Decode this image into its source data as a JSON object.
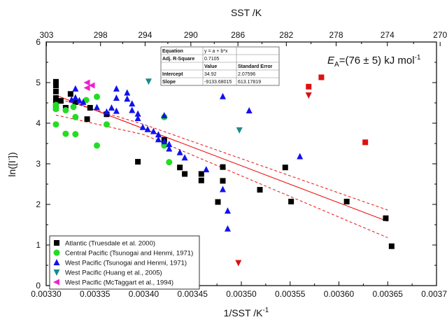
{
  "chart_data": {
    "type": "scatter",
    "xlabel": "1/SST /K",
    "xlabel_sup": "-1",
    "ylabel": "ln([I",
    "ylabel_sup": "-",
    "ylabel_end": "])",
    "top_xlabel": "SST /K",
    "xlim": [
      0.0033,
      0.0037
    ],
    "ylim": [
      0,
      6
    ],
    "x_ticks": [
      0.0033,
      0.00335,
      0.0034,
      0.00345,
      0.0035,
      0.00355,
      0.0036,
      0.00365,
      0.0037
    ],
    "x_tick_labels": [
      "0.00330",
      "0.00335",
      "0.00340",
      "0.00345",
      "0.00350",
      "0.00355",
      "0.00360",
      "0.00365",
      "0.00370"
    ],
    "y_ticks": [
      0,
      1,
      2,
      3,
      4,
      5,
      6
    ],
    "y_tick_labels": [
      "0",
      "1",
      "2",
      "3",
      "4",
      "5",
      "6"
    ],
    "top_ticks": [
      303,
      298,
      294,
      290,
      286,
      282,
      278,
      274,
      270
    ],
    "top_tick_labels": [
      "303",
      "298",
      "294",
      "290",
      "286",
      "282",
      "278",
      "274",
      "270"
    ],
    "annotation": {
      "prefix": "E",
      "subscript": "A",
      "text": "=(76 ± 5) kJ mol",
      "sup": "-1"
    },
    "fit_table": {
      "rows": [
        [
          "Equation",
          "y = a + b*x",
          ""
        ],
        [
          "Adj. R-Square",
          "0.7105",
          ""
        ],
        [
          "",
          "Value",
          "Standard Error"
        ],
        [
          "Intercept",
          "34.92",
          "2.07596"
        ],
        [
          "Slope",
          "-9133.68015",
          "613.17819"
        ]
      ]
    },
    "fit": {
      "intercept": 34.92,
      "slope": -9133.68015,
      "x_range": [
        0.00331,
        0.00365
      ]
    },
    "conf_band": {
      "upper": [
        [
          0.00331,
          4.62
        ],
        [
          0.0034,
          3.97
        ],
        [
          0.00365,
          1.86
        ]
      ],
      "lower": [
        [
          0.00331,
          4.2
        ],
        [
          0.0034,
          3.72
        ],
        [
          0.00365,
          1.18
        ]
      ]
    },
    "legend_position": "bottom-left",
    "series": [
      {
        "name": "Atlantic (Truesdale et al. 2000)",
        "marker": "square",
        "color": "#000000",
        "points": [
          [
            0.00331,
            5.02
          ],
          [
            0.00331,
            4.93
          ],
          [
            0.00331,
            4.78
          ],
          [
            0.00331,
            4.62
          ],
          [
            0.00331,
            4.45
          ],
          [
            0.00331,
            4.37
          ],
          [
            0.00331,
            4.52
          ],
          [
            0.003315,
            4.55
          ],
          [
            0.00332,
            4.38
          ],
          [
            0.003325,
            4.72
          ],
          [
            0.00333,
            4.52
          ],
          [
            0.003342,
            4.1
          ],
          [
            0.003345,
            4.38
          ],
          [
            0.003362,
            4.22
          ],
          [
            0.003394,
            3.05
          ],
          [
            0.003421,
            3.59
          ],
          [
            0.003437,
            2.91
          ],
          [
            0.003442,
            2.75
          ],
          [
            0.003459,
            2.75
          ],
          [
            0.003459,
            2.59
          ],
          [
            0.003476,
            2.06
          ],
          [
            0.003481,
            2.92
          ],
          [
            0.003481,
            2.58
          ],
          [
            0.003519,
            2.36
          ],
          [
            0.003545,
            2.91
          ],
          [
            0.003551,
            2.07
          ],
          [
            0.003608,
            2.07
          ],
          [
            0.003648,
            1.66
          ],
          [
            0.003654,
            0.97
          ]
        ]
      },
      {
        "name": "Central Pacific (Tsunogai and Henmi, 1971)",
        "marker": "circle",
        "color": "#22dd22",
        "points": [
          [
            0.00331,
            4.45
          ],
          [
            0.00331,
            4.35
          ],
          [
            0.00331,
            3.97
          ],
          [
            0.00332,
            4.32
          ],
          [
            0.00332,
            3.74
          ],
          [
            0.003328,
            4.4
          ],
          [
            0.00333,
            4.15
          ],
          [
            0.00333,
            3.73
          ],
          [
            0.003341,
            4.57
          ],
          [
            0.003352,
            4.65
          ],
          [
            0.003352,
            3.45
          ],
          [
            0.003362,
            3.97
          ],
          [
            0.003421,
            4.15
          ],
          [
            0.003421,
            3.45
          ],
          [
            0.003426,
            3.04
          ]
        ]
      },
      {
        "name": "West Pacific (Tsunogai and Henmi, 1971)",
        "marker": "triangle-up",
        "color": "#1111ee",
        "points": [
          [
            0.003326,
            4.58
          ],
          [
            0.00333,
            4.63
          ],
          [
            0.00333,
            4.85
          ],
          [
            0.003334,
            4.56
          ],
          [
            0.003338,
            4.52
          ],
          [
            0.003352,
            4.39
          ],
          [
            0.003362,
            4.28
          ],
          [
            0.003367,
            4.38
          ],
          [
            0.003372,
            4.3
          ],
          [
            0.003372,
            4.62
          ],
          [
            0.003372,
            4.85
          ],
          [
            0.003383,
            4.75
          ],
          [
            0.003383,
            4.6
          ],
          [
            0.003388,
            4.32
          ],
          [
            0.003388,
            4.48
          ],
          [
            0.003394,
            4.23
          ],
          [
            0.003394,
            4.12
          ],
          [
            0.003399,
            3.9
          ],
          [
            0.003404,
            3.85
          ],
          [
            0.00341,
            3.8
          ],
          [
            0.003415,
            3.72
          ],
          [
            0.003415,
            3.6
          ],
          [
            0.003421,
            3.55
          ],
          [
            0.003421,
            4.19
          ],
          [
            0.003426,
            3.48
          ],
          [
            0.003426,
            3.37
          ],
          [
            0.003437,
            3.28
          ],
          [
            0.003442,
            3.15
          ],
          [
            0.003464,
            2.86
          ],
          [
            0.003481,
            4.66
          ],
          [
            0.003481,
            2.37
          ],
          [
            0.003486,
            1.84
          ],
          [
            0.003486,
            1.4
          ],
          [
            0.003508,
            4.31
          ],
          [
            0.00356,
            3.18
          ]
        ]
      },
      {
        "name": "West Pacific (Huang et al., 2005)",
        "marker": "triangle-down",
        "color": "#1a8a8a",
        "points": [
          [
            0.003405,
            5.03
          ],
          [
            0.003498,
            3.83
          ]
        ]
      },
      {
        "name": "West Pacific (McTaggart  et al., 1994)",
        "marker": "triangle-left",
        "color": "#ee22cc",
        "points": [
          [
            0.003342,
            5.0
          ],
          [
            0.003347,
            4.93
          ],
          [
            0.003342,
            4.87
          ]
        ]
      },
      {
        "marker": "square",
        "color": "#dd1111",
        "points": [
          [
            0.003569,
            4.9
          ],
          [
            0.003582,
            5.13
          ],
          [
            0.003627,
            3.53
          ]
        ]
      },
      {
        "marker": "triangle-down",
        "color": "#dd1111",
        "points": [
          [
            0.003569,
            4.69
          ],
          [
            0.003497,
            0.56
          ]
        ]
      }
    ]
  }
}
